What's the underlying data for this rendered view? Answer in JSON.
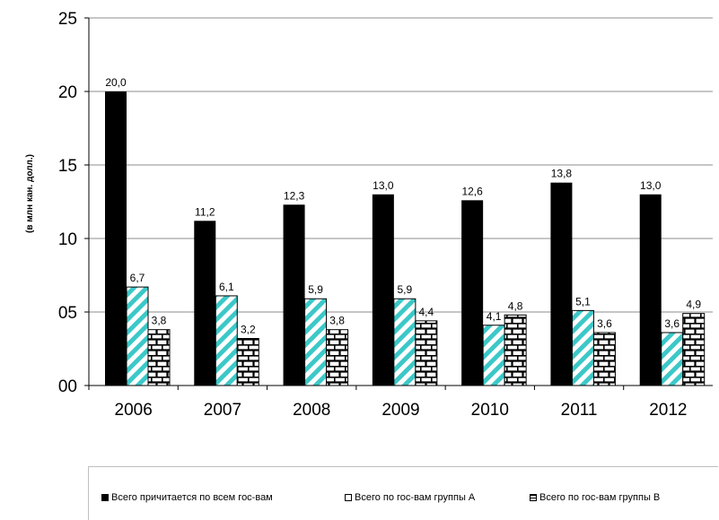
{
  "chart_data": {
    "type": "bar",
    "categories": [
      "2006",
      "2007",
      "2008",
      "2009",
      "2010",
      "2011",
      "2012"
    ],
    "series": [
      {
        "name": "Всего причитается по всем гос-вам",
        "values": [
          20.0,
          11.2,
          12.3,
          13.0,
          12.6,
          13.8,
          13.0
        ],
        "color": "#000000",
        "pattern": "solid"
      },
      {
        "name": "Всего по гос-вам группы А",
        "values": [
          6.7,
          6.1,
          5.9,
          5.9,
          4.1,
          5.1,
          3.6
        ],
        "color": "#3cc8c8",
        "pattern": "diagonal-stripes"
      },
      {
        "name": "Всего по гос-вам группы В",
        "values": [
          3.8,
          3.2,
          3.8,
          4.4,
          4.8,
          3.6,
          4.9
        ],
        "color": "#000000",
        "pattern": "brick"
      }
    ],
    "data_labels": [
      [
        "20,0",
        "11,2",
        "12,3",
        "13,0",
        "12,6",
        "13,8",
        "13,0"
      ],
      [
        "6,7",
        "6,1",
        "5,9",
        "5,9",
        "4,1",
        "5,1",
        "3,6"
      ],
      [
        "3,8",
        "3,2",
        "3,8",
        "4,4",
        "4,8",
        "3,6",
        "4,9"
      ]
    ],
    "yticks": [
      0,
      5,
      10,
      15,
      20,
      25
    ],
    "ytick_labels": [
      "00",
      "05",
      "10",
      "15",
      "20",
      "25"
    ],
    "ylabel": "(в млн кан. долл.)",
    "ylim": [
      0,
      25
    ],
    "grid": true,
    "legend": "bottom"
  }
}
